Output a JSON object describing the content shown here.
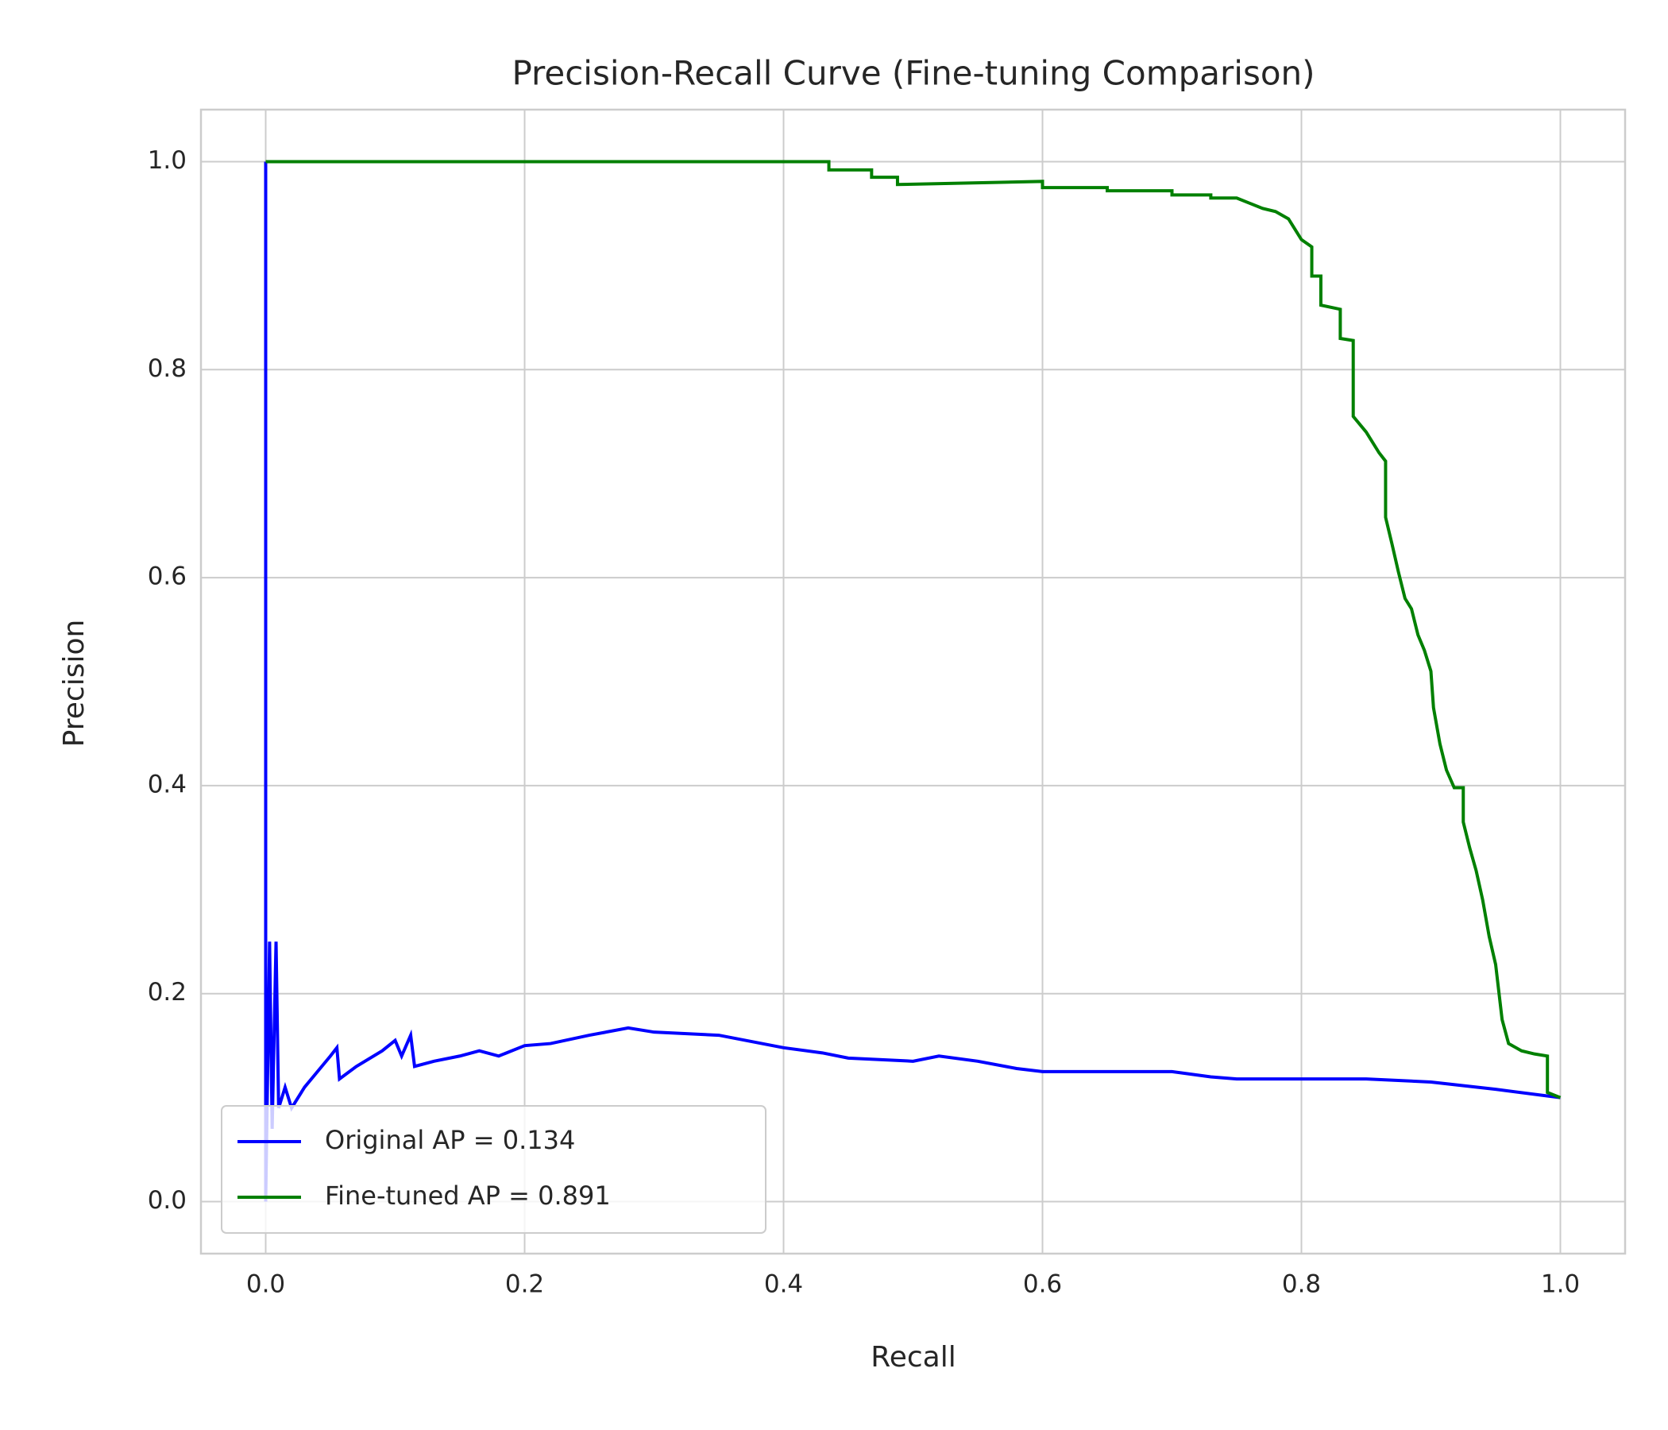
{
  "chart_data": {
    "type": "line",
    "title": "Precision-Recall Curve (Fine-tuning Comparison)",
    "x_label": "Recall",
    "y_label": "Precision",
    "xlim": [
      -0.05,
      1.05
    ],
    "ylim": [
      -0.05,
      1.05
    ],
    "xticks": [
      {
        "value": 0,
        "label": "0.0"
      },
      0.2,
      0.4,
      0.6,
      0.8,
      {
        "value": 1,
        "label": "1.0"
      }
    ],
    "yticks": [
      {
        "value": 0,
        "label": "0.0"
      },
      0.2,
      0.4,
      0.6,
      0.8,
      {
        "value": 1,
        "label": "1.0"
      }
    ],
    "grid": true,
    "legend": "lower left",
    "series": [
      {
        "name": "Original AP = 0.134",
        "color": "#0000ff",
        "x": [
          0,
          0,
          0.003,
          0.005,
          0.008,
          0.01,
          0.015,
          0.02,
          0.03,
          0.04,
          0.05,
          0.055,
          0.057,
          0.07,
          0.09,
          0.1,
          0.105,
          0.112,
          0.115,
          0.13,
          0.15,
          0.165,
          0.18,
          0.2,
          0.22,
          0.25,
          0.28,
          0.3,
          0.35,
          0.4,
          0.43,
          0.45,
          0.5,
          0.52,
          0.55,
          0.58,
          0.6,
          0.65,
          0.7,
          0.73,
          0.75,
          0.8,
          0.85,
          0.9,
          0.95,
          1.0
        ],
        "values": [
          1,
          0,
          0.25,
          0.07,
          0.25,
          0.09,
          0.11,
          0.09,
          0.11,
          0.125,
          0.14,
          0.148,
          0.118,
          0.13,
          0.145,
          0.155,
          0.14,
          0.16,
          0.13,
          0.135,
          0.14,
          0.145,
          0.14,
          0.15,
          0.152,
          0.16,
          0.167,
          0.163,
          0.16,
          0.148,
          0.143,
          0.138,
          0.135,
          0.14,
          0.135,
          0.128,
          0.125,
          0.125,
          0.125,
          0.12,
          0.118,
          0.118,
          0.118,
          0.115,
          0.108,
          0.1
        ]
      },
      {
        "name": "Fine-tuned AP = 0.891",
        "color": "#008000",
        "x": [
          0,
          0.435,
          0.435,
          0.468,
          0.468,
          0.488,
          0.488,
          0.6,
          0.6,
          0.65,
          0.65,
          0.7,
          0.7,
          0.73,
          0.73,
          0.75,
          0.76,
          0.77,
          0.78,
          0.79,
          0.795,
          0.8,
          0.808,
          0.808,
          0.815,
          0.815,
          0.83,
          0.83,
          0.84,
          0.84,
          0.85,
          0.86,
          0.865,
          0.865,
          0.87,
          0.875,
          0.88,
          0.885,
          0.89,
          0.895,
          0.9,
          0.902,
          0.907,
          0.912,
          0.918,
          0.925,
          0.925,
          0.93,
          0.935,
          0.94,
          0.945,
          0.95,
          0.955,
          0.96,
          0.97,
          0.98,
          0.99,
          0.99,
          1.0
        ],
        "values": [
          1,
          1,
          0.992,
          0.992,
          0.985,
          0.985,
          0.978,
          0.981,
          0.975,
          0.975,
          0.972,
          0.972,
          0.968,
          0.968,
          0.965,
          0.965,
          0.96,
          0.955,
          0.952,
          0.945,
          0.935,
          0.925,
          0.918,
          0.89,
          0.89,
          0.862,
          0.858,
          0.83,
          0.828,
          0.755,
          0.74,
          0.72,
          0.712,
          0.658,
          0.632,
          0.605,
          0.58,
          0.57,
          0.545,
          0.53,
          0.51,
          0.475,
          0.44,
          0.415,
          0.398,
          0.398,
          0.365,
          0.34,
          0.318,
          0.29,
          0.255,
          0.228,
          0.175,
          0.152,
          0.145,
          0.142,
          0.14,
          0.105,
          0.1
        ]
      }
    ]
  }
}
